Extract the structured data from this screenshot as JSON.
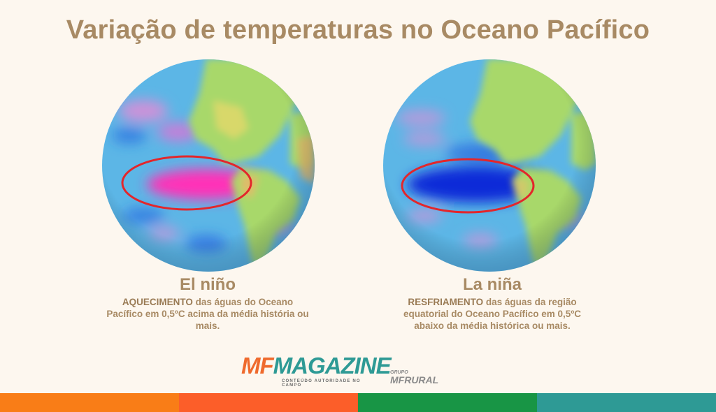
{
  "title": "Variação de temperaturas no Oceano Pacífico",
  "left": {
    "heading": "El niño",
    "text_strong": "AQUECIMENTO",
    "text_rest": " das águas do Oceano Pacífico em 0,5ºC acima da média história ou mais."
  },
  "right": {
    "heading": "La niña",
    "text_strong": "RESFRIAMENTO",
    "text_rest": " das águas da região equatorial do Oceano Pacífico em  0,5ºC abaixo da média histórica ou mais."
  },
  "logo": {
    "mf": "MF",
    "magazine": "MAGAZINE",
    "tagline": "CONTEÚDO AUTORIDADE NO CAMPO",
    "grupo": "GRUPO",
    "rural": "MFRURAL"
  },
  "colors": {
    "background": "#fdf7ef",
    "title": "#a88a64",
    "ocean": "#5cb6e6",
    "land": "#a8d86a",
    "warm": "#ff33b8",
    "cold": "#0a2ad8",
    "ellipse": "#e3262b",
    "bars": [
      "#f97d17",
      "#fc5e29",
      "#189545",
      "#2e9a95"
    ]
  }
}
